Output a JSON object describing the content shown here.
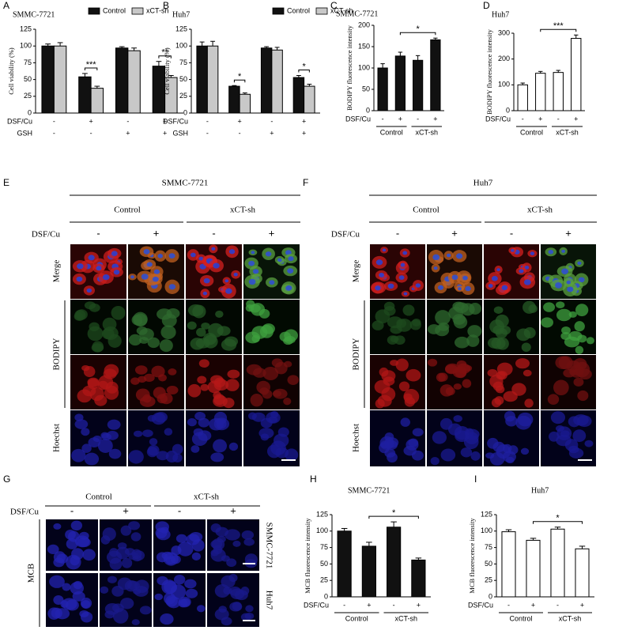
{
  "chart_data": [
    {
      "type": "bar",
      "panel": "A",
      "title": "SMMC-7721",
      "ylabel": "Cell viability (%)",
      "ylim": [
        0,
        125
      ],
      "yticks": [
        0,
        25,
        50,
        75,
        100,
        125
      ],
      "series": [
        {
          "name": "Control",
          "color": "#111111",
          "values": [
            100,
            54,
            97,
            70
          ],
          "errors": [
            3,
            5,
            2,
            7
          ]
        },
        {
          "name": "xCT-sh",
          "color": "#c8c8c8",
          "values": [
            100,
            37,
            93,
            53
          ],
          "errors": [
            5,
            3,
            4,
            3
          ]
        }
      ],
      "conditions": [
        {
          "label": "DSF/Cu",
          "signs": [
            "-",
            "+",
            "-",
            "+"
          ]
        },
        {
          "label": "GSH",
          "signs": [
            "-",
            "-",
            "+",
            "+"
          ]
        }
      ],
      "significance": [
        {
          "text": "***",
          "group": 1
        },
        {
          "text": "**",
          "group": 3
        }
      ]
    },
    {
      "type": "bar",
      "panel": "B",
      "title": "Huh7",
      "ylabel": "Cell viability (%)",
      "ylim": [
        0,
        125
      ],
      "yticks": [
        0,
        25,
        50,
        75,
        100,
        125
      ],
      "series": [
        {
          "name": "Control",
          "color": "#111111",
          "values": [
            100,
            40,
            97,
            53
          ],
          "errors": [
            6,
            1,
            2,
            3
          ]
        },
        {
          "name": "xCT-sh",
          "color": "#c8c8c8",
          "values": [
            100,
            28,
            94,
            40
          ],
          "errors": [
            7,
            2,
            4,
            3
          ]
        }
      ],
      "conditions": [
        {
          "label": "DSF/Cu",
          "signs": [
            "-",
            "+",
            "-",
            "+"
          ]
        },
        {
          "label": "GSH",
          "signs": [
            "-",
            "-",
            "+",
            "+"
          ]
        }
      ],
      "significance": [
        {
          "text": "*",
          "group": 1
        },
        {
          "text": "*",
          "group": 3
        }
      ]
    },
    {
      "type": "bar",
      "panel": "C",
      "title": "SMMC-7721",
      "ylabel": "BODIPY fluorescence intensity",
      "ylim": [
        0,
        200
      ],
      "yticks": [
        0,
        50,
        100,
        150,
        200
      ],
      "values": [
        100,
        128,
        118,
        166
      ],
      "errors": [
        10,
        9,
        11,
        4
      ],
      "color": "#111111",
      "conditions": [
        {
          "label": "DSF/Cu",
          "signs": [
            "-",
            "+",
            "-",
            "+"
          ]
        }
      ],
      "groups": [
        "Control",
        "xCT-sh"
      ],
      "significance": [
        {
          "text": "*",
          "between": [
            1,
            3
          ]
        }
      ]
    },
    {
      "type": "bar",
      "panel": "D",
      "title": "Huh7",
      "ylabel": "BODIPY fluorescence intensity",
      "ylim": [
        0,
        300
      ],
      "yticks": [
        0,
        100,
        200,
        300
      ],
      "values": [
        100,
        145,
        148,
        280
      ],
      "errors": [
        7,
        7,
        8,
        13
      ],
      "color": "#ffffff",
      "conditions": [
        {
          "label": "DSF/Cu",
          "signs": [
            "-",
            "+",
            "-",
            "+"
          ]
        }
      ],
      "groups": [
        "Control",
        "xCT-sh"
      ],
      "significance": [
        {
          "text": "***",
          "between": [
            1,
            3
          ]
        }
      ]
    },
    {
      "type": "bar",
      "panel": "H",
      "title": "SMMC-7721",
      "ylabel": "MCB fluorescence intensity",
      "ylim": [
        0,
        125
      ],
      "yticks": [
        0,
        25,
        50,
        75,
        100,
        125
      ],
      "values": [
        100,
        77,
        106,
        56
      ],
      "errors": [
        4,
        6,
        8,
        3
      ],
      "color": "#111111",
      "conditions": [
        {
          "label": "DSF/Cu",
          "signs": [
            "-",
            "+",
            "-",
            "+"
          ]
        }
      ],
      "groups": [
        "Control",
        "xCT-sh"
      ],
      "significance": [
        {
          "text": "*",
          "between": [
            1,
            3
          ]
        }
      ]
    },
    {
      "type": "bar",
      "panel": "I",
      "title": "Huh7",
      "ylabel": "MCB fluorescence intensity",
      "ylim": [
        0,
        125
      ],
      "yticks": [
        0,
        25,
        50,
        75,
        100,
        125
      ],
      "values": [
        99,
        86,
        103,
        73
      ],
      "errors": [
        3,
        3,
        3,
        4
      ],
      "color": "#ffffff",
      "conditions": [
        {
          "label": "DSF/Cu",
          "signs": [
            "-",
            "+",
            "-",
            "+"
          ]
        }
      ],
      "groups": [
        "Control",
        "xCT-sh"
      ],
      "significance": [
        {
          "text": "*",
          "between": [
            1,
            3
          ]
        }
      ]
    }
  ],
  "panel_e": {
    "label": "E",
    "title": "SMMC-7721",
    "groups": [
      "Control",
      "xCT-sh"
    ],
    "treatment": "DSF/Cu",
    "signs": [
      "-",
      "+",
      "-",
      "+"
    ],
    "rows": [
      "Merge",
      "BODIPY",
      "Hoechst"
    ]
  },
  "panel_f": {
    "label": "F",
    "title": "Huh7",
    "groups": [
      "Control",
      "xCT-sh"
    ],
    "treatment": "DSF/Cu",
    "signs": [
      "-",
      "+",
      "-",
      "+"
    ],
    "rows": [
      "Merge",
      "BODIPY",
      "Hoechst"
    ]
  },
  "panel_g": {
    "label": "G",
    "groups": [
      "Control",
      "xCT-sh"
    ],
    "treatment": "DSF/Cu",
    "signs": [
      "-",
      "+",
      "-",
      "+"
    ],
    "stain": "MCB",
    "cell_lines": [
      "SMMC-7721",
      "Huh7"
    ]
  }
}
